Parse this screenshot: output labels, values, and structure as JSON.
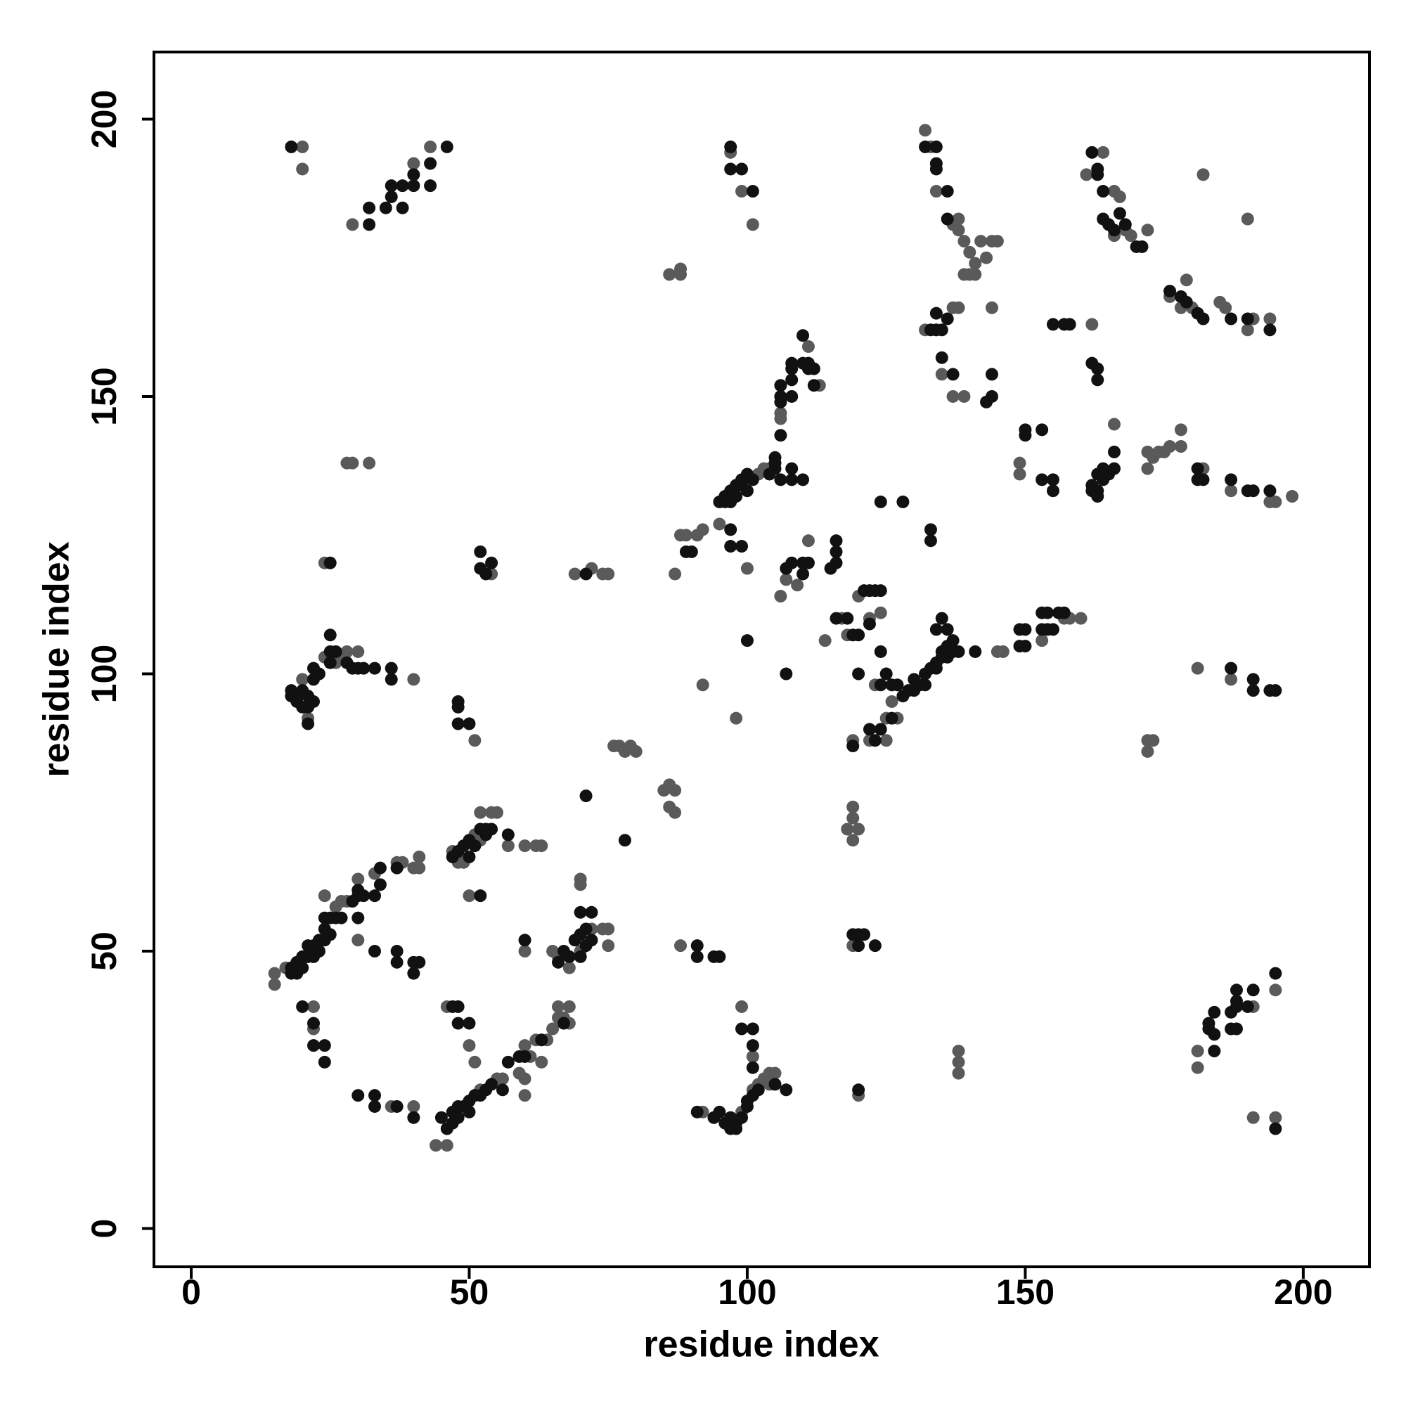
{
  "chart_data": {
    "type": "scatter",
    "x_label": "residue index",
    "y_label": "residue index",
    "xlim": [
      -6.7,
      211.9
    ],
    "ylim": [
      -6.9,
      212.1
    ],
    "xticks": [
      0,
      50,
      100,
      150,
      200
    ],
    "yticks": [
      0,
      50,
      100,
      150,
      200
    ],
    "grid": false,
    "series": [
      {
        "color": "#5a5a5a",
        "x": [
          20,
          20,
          29,
          40,
          43,
          97,
          99,
          101,
          86,
          88,
          88,
          132,
          133,
          134,
          137,
          138,
          138,
          139,
          140,
          140,
          139,
          141,
          141,
          142,
          143,
          144,
          145,
          144,
          138,
          137,
          132,
          135,
          137,
          139,
          161,
          164,
          166,
          167,
          166,
          168,
          169,
          172,
          176,
          178,
          179,
          180,
          185,
          186,
          190,
          191,
          194,
          190,
          182,
          87,
          88,
          89,
          91,
          92,
          95,
          100,
          102,
          103,
          104,
          106,
          106,
          111,
          113,
          107,
          109,
          111,
          106,
          98,
          92,
          114,
          117,
          118,
          120,
          124,
          122,
          123,
          126,
          125,
          127,
          122,
          125,
          119,
          145,
          146,
          153,
          157,
          158,
          160,
          149,
          149,
          162,
          166,
          172,
          172,
          173,
          174,
          175,
          176,
          178,
          178,
          182,
          187,
          194,
          195,
          198,
          181,
          187,
          173,
          172,
          172,
          15,
          15,
          17,
          24,
          26,
          27,
          28,
          30,
          33,
          37,
          38,
          40,
          41,
          41,
          30,
          22,
          22,
          36,
          40,
          44,
          46,
          52,
          55,
          56,
          59,
          60,
          61,
          62,
          63,
          64,
          65,
          66,
          67,
          66,
          68,
          68,
          60,
          60,
          46,
          50,
          51,
          47,
          48,
          49,
          51,
          52,
          54,
          55,
          52,
          57,
          60,
          62,
          63,
          50,
          51,
          54,
          60,
          65,
          66,
          68,
          70,
          72,
          70,
          70,
          74,
          75,
          75,
          72,
          69,
          74,
          75,
          76,
          77,
          78,
          79,
          80,
          85,
          86,
          87,
          86,
          87,
          88,
          92,
          99,
          101,
          102,
          103,
          104,
          104,
          105,
          101,
          99,
          119,
          120,
          118,
          119,
          119,
          120,
          119,
          138,
          138,
          138,
          181,
          181,
          191,
          195,
          191,
          195,
          20,
          21,
          24,
          26,
          27,
          28,
          30,
          40,
          28,
          29,
          32,
          24
        ],
        "values": [
          195,
          191,
          181,
          192,
          195,
          194,
          187,
          181,
          172,
          173,
          172,
          198,
          195,
          187,
          181,
          182,
          180,
          178,
          176,
          172,
          172,
          174,
          172,
          178,
          175,
          178,
          178,
          166,
          166,
          166,
          162,
          154,
          150,
          150,
          190,
          194,
          187,
          186,
          179,
          180,
          179,
          180,
          168,
          166,
          171,
          166,
          167,
          166,
          162,
          164,
          164,
          182,
          190,
          118,
          125,
          125,
          125,
          126,
          127,
          119,
          136,
          137,
          137,
          147,
          146,
          159,
          152,
          117,
          116,
          124,
          114,
          92,
          98,
          106,
          110,
          107,
          114,
          111,
          110,
          98,
          95,
          92,
          92,
          88,
          88,
          88,
          104,
          104,
          106,
          110,
          110,
          110,
          138,
          136,
          163,
          145,
          137,
          140,
          139,
          140,
          140,
          141,
          141,
          144,
          137,
          133,
          131,
          131,
          132,
          101,
          99,
          88,
          88,
          86,
          46,
          44,
          47,
          60,
          58,
          59,
          59,
          63,
          64,
          66,
          66,
          65,
          67,
          65,
          52,
          40,
          36,
          22,
          22,
          15,
          15,
          25,
          27,
          27,
          28,
          33,
          31,
          34,
          30,
          34,
          36,
          38,
          38,
          40,
          40,
          37,
          27,
          24,
          40,
          33,
          30,
          68,
          66,
          66,
          71,
          70,
          75,
          75,
          75,
          69,
          69,
          69,
          69,
          60,
          88,
          118,
          50,
          50,
          49,
          47,
          50,
          54,
          63,
          62,
          54,
          54,
          51,
          119,
          118,
          118,
          118,
          87,
          87,
          86,
          87,
          86,
          79,
          80,
          79,
          76,
          75,
          51,
          21,
          21,
          25,
          26,
          27,
          26,
          28,
          28,
          31,
          40,
          51,
          24,
          72,
          74,
          76,
          72,
          70,
          32,
          30,
          28,
          32,
          29,
          40,
          43,
          20,
          20,
          99,
          92,
          103,
          102,
          103,
          104,
          104,
          99,
          138,
          138,
          138,
          120
        ]
      },
      {
        "color": "#111111",
        "x": [
          18,
          32,
          32,
          35,
          36,
          36,
          38,
          38,
          40,
          40,
          43,
          43,
          46,
          97,
          97,
          99,
          101,
          134,
          132,
          134,
          134,
          136,
          136,
          134,
          136,
          135,
          134,
          133,
          135,
          137,
          143,
          144,
          144,
          162,
          163,
          163,
          164,
          164,
          165,
          166,
          167,
          168,
          170,
          171,
          176,
          178,
          179,
          181,
          182,
          187,
          190,
          194,
          89,
          90,
          97,
          97,
          99,
          95,
          96,
          96,
          97,
          97,
          98,
          98,
          99,
          99,
          100,
          100,
          101,
          104,
          105,
          105,
          105,
          106,
          106,
          106,
          106,
          106,
          108,
          108,
          108,
          108,
          108,
          108,
          110,
          110,
          111,
          111,
          112,
          112,
          110,
          107,
          108,
          110,
          110,
          111,
          107,
          100,
          115,
          116,
          116,
          116,
          116,
          118,
          119,
          120,
          120,
          121,
          122,
          122,
          123,
          124,
          124,
          124,
          125,
          126,
          126,
          127,
          122,
          124,
          123,
          119,
          124,
          128,
          133,
          133,
          128,
          129,
          130,
          130,
          131,
          132,
          132,
          133,
          134,
          134,
          135,
          135,
          136,
          136,
          137,
          137,
          138,
          134,
          135,
          136,
          141,
          149,
          150,
          149,
          150,
          153,
          154,
          155,
          153,
          154,
          156,
          157,
          150,
          150,
          153,
          153,
          155,
          155,
          155,
          157,
          158,
          162,
          163,
          163,
          162,
          162,
          163,
          163,
          163,
          164,
          164,
          165,
          166,
          166,
          181,
          181,
          182,
          187,
          190,
          191,
          194,
          187,
          191,
          191,
          194,
          195,
          18,
          18,
          19,
          19,
          20,
          20,
          21,
          21,
          22,
          22,
          23,
          23,
          24,
          24,
          24,
          25,
          25,
          26,
          27,
          29,
          30,
          30,
          31,
          33,
          34,
          34,
          37,
          30,
          33,
          37,
          37,
          40,
          41,
          40,
          20,
          22,
          22,
          24,
          24,
          30,
          33,
          33,
          37,
          40,
          45,
          46,
          47,
          47,
          48,
          48,
          49,
          50,
          50,
          51,
          52,
          53,
          54,
          56,
          57,
          59,
          60,
          63,
          67,
          47,
          48,
          48,
          50,
          47,
          48,
          49,
          50,
          50,
          51,
          52,
          53,
          53,
          54,
          57,
          52,
          48,
          48,
          48,
          50,
          52,
          52,
          53,
          54,
          60,
          66,
          67,
          68,
          69,
          70,
          70,
          71,
          71,
          72,
          70,
          72,
          71,
          78,
          71,
          91,
          91,
          94,
          95,
          91,
          94,
          95,
          96,
          97,
          97,
          98,
          98,
          99,
          100,
          100,
          101,
          102,
          105,
          107,
          101,
          101,
          101,
          99,
          119,
          120,
          121,
          120,
          123,
          120,
          183,
          183,
          184,
          184,
          184,
          187,
          187,
          188,
          188,
          188,
          188,
          190,
          191,
          195,
          195,
          18,
          18,
          19,
          19,
          20,
          20,
          21,
          21,
          21,
          22,
          22,
          22,
          23,
          25,
          25,
          25,
          26,
          28,
          29,
          30,
          31,
          33,
          36,
          36,
          25
        ],
        "values": [
          195,
          181,
          184,
          184,
          186,
          188,
          184,
          188,
          188,
          190,
          192,
          188,
          195,
          195,
          191,
          191,
          187,
          195,
          195,
          192,
          191,
          187,
          182,
          165,
          164,
          162,
          162,
          162,
          157,
          154,
          149,
          150,
          154,
          194,
          191,
          190,
          187,
          182,
          181,
          180,
          183,
          181,
          177,
          177,
          169,
          168,
          167,
          165,
          164,
          164,
          164,
          162,
          122,
          122,
          126,
          123,
          123,
          131,
          131,
          132,
          133,
          131,
          134,
          132,
          135,
          134,
          136,
          133,
          135,
          136,
          139,
          138,
          137,
          135,
          149,
          150,
          152,
          143,
          137,
          135,
          150,
          153,
          155,
          156,
          156,
          161,
          156,
          155,
          155,
          152,
          135,
          119,
          120,
          120,
          118,
          120,
          100,
          106,
          119,
          120,
          122,
          124,
          110,
          110,
          107,
          107,
          100,
          115,
          115,
          109,
          115,
          115,
          104,
          98,
          100,
          98,
          92,
          98,
          90,
          90,
          88,
          87,
          131,
          131,
          126,
          124,
          96,
          97,
          97,
          99,
          98,
          98,
          100,
          101,
          101,
          102,
          103,
          104,
          103,
          105,
          104,
          106,
          104,
          108,
          110,
          108,
          104,
          105,
          105,
          108,
          108,
          108,
          108,
          108,
          111,
          111,
          111,
          111,
          143,
          144,
          144,
          135,
          135,
          133,
          163,
          163,
          163,
          156,
          155,
          153,
          133,
          134,
          133,
          132,
          136,
          135,
          137,
          136,
          137,
          140,
          137,
          135,
          135,
          135,
          133,
          133,
          133,
          101,
          99,
          97,
          97,
          97,
          47,
          46,
          48,
          46,
          49,
          47,
          51,
          49,
          51,
          49,
          50,
          52,
          52,
          54,
          56,
          56,
          53,
          56,
          56,
          59,
          60,
          61,
          60,
          60,
          62,
          65,
          65,
          56,
          50,
          50,
          48,
          48,
          48,
          46,
          40,
          37,
          33,
          33,
          30,
          24,
          24,
          22,
          22,
          20,
          20,
          18,
          21,
          19,
          20,
          22,
          22,
          21,
          23,
          24,
          24,
          25,
          26,
          25,
          30,
          31,
          31,
          34,
          37,
          40,
          40,
          37,
          37,
          67,
          68,
          69,
          70,
          67,
          69,
          72,
          72,
          71,
          72,
          71,
          60,
          95,
          94,
          91,
          91,
          119,
          122,
          118,
          120,
          52,
          48,
          50,
          49,
          52,
          49,
          53,
          54,
          51,
          52,
          57,
          57,
          78,
          70,
          118,
          51,
          49,
          49,
          49,
          21,
          20,
          21,
          19,
          20,
          18,
          18,
          19,
          20,
          22,
          23,
          24,
          25,
          26,
          25,
          29,
          33,
          36,
          36,
          53,
          53,
          53,
          51,
          51,
          25,
          36,
          37,
          39,
          35,
          32,
          36,
          39,
          41,
          40,
          36,
          43,
          40,
          43,
          46,
          18,
          97,
          96,
          95,
          96,
          94,
          97,
          96,
          94,
          91,
          95,
          99,
          101,
          100,
          102,
          104,
          107,
          104,
          102,
          101,
          101,
          101,
          101,
          101,
          99,
          120
        ]
      }
    ]
  }
}
